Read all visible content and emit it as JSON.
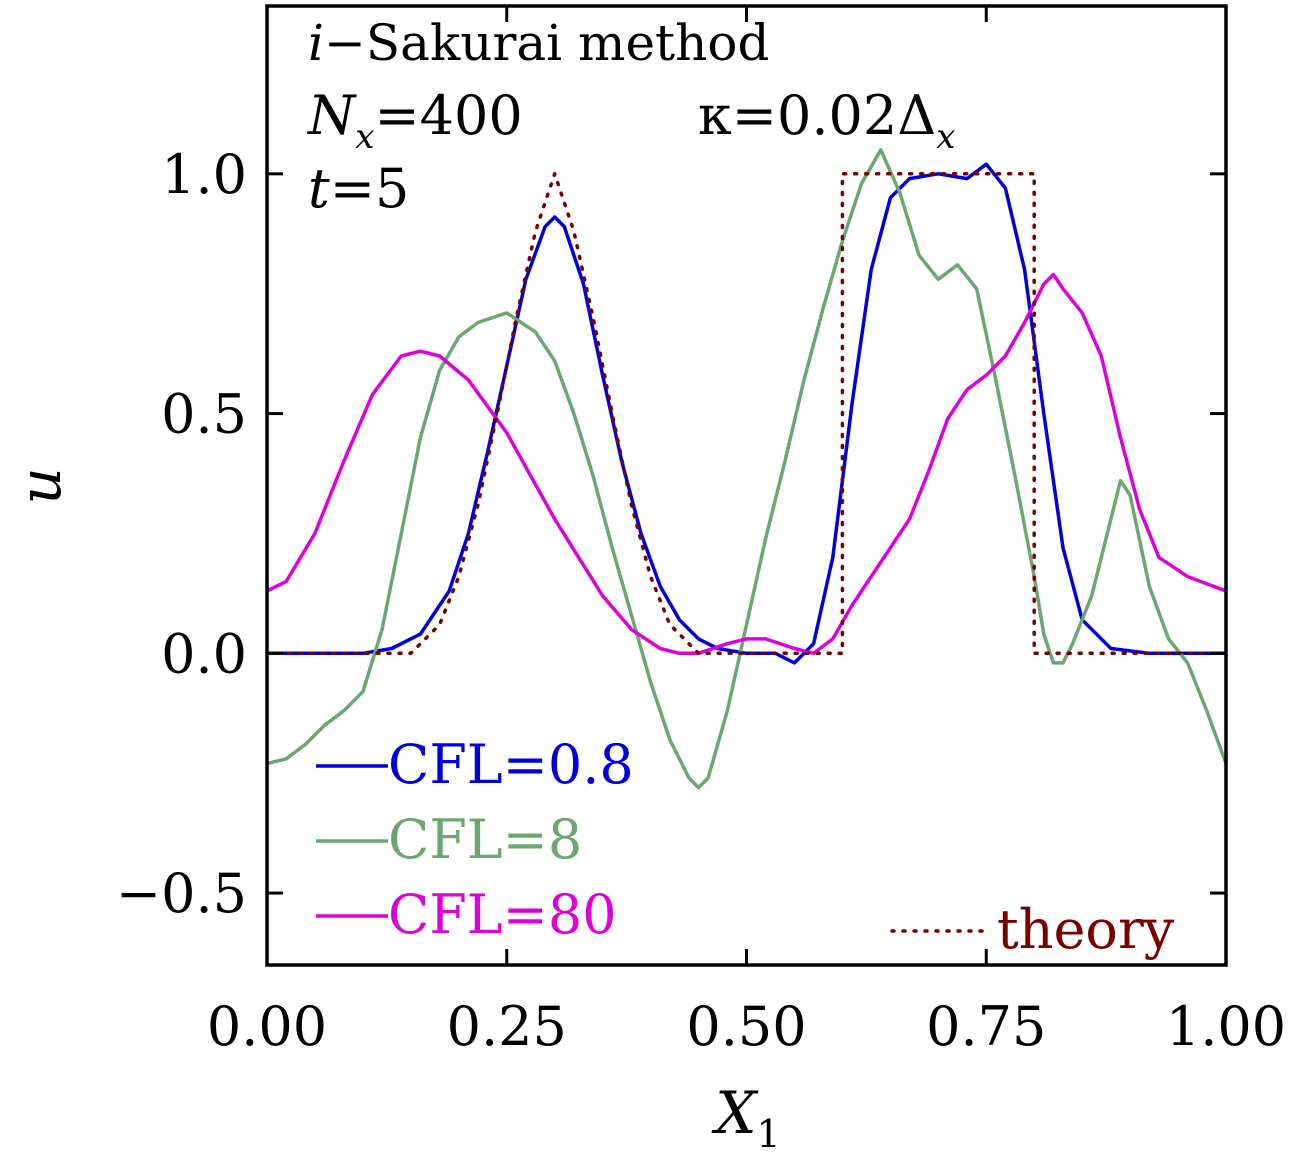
{
  "chart_data": {
    "type": "line",
    "xlabel": "X",
    "xlabel_sub": "1",
    "ylabel": "u",
    "xlim": [
      0,
      1
    ],
    "ylim": [
      -0.65,
      1.35
    ],
    "xticks": [
      0,
      0.25,
      0.5,
      0.75,
      1
    ],
    "xtick_labels": [
      "0.00",
      "0.25",
      "0.50",
      "0.75",
      "1.00"
    ],
    "yticks": [
      -0.5,
      0,
      0.5,
      1
    ],
    "ytick_labels": [
      "−0.5",
      "0.0",
      "0.5",
      "1.0"
    ],
    "grid": false,
    "annotations": {
      "method_italic": "i",
      "method_rest": "−Sakurai method",
      "nx_label": "N",
      "nx_sub": "x",
      "nx_value": "=400",
      "t_label": "t",
      "t_value": "=5",
      "kappa_text": "κ=0.02Δ",
      "kappa_sub": "x"
    },
    "series": [
      {
        "name": "CFL=0.8",
        "color": "#0000dd",
        "dash": "solid",
        "x": [
          0,
          0.1,
          0.13,
          0.16,
          0.19,
          0.21,
          0.23,
          0.25,
          0.27,
          0.29,
          0.3,
          0.31,
          0.33,
          0.35,
          0.37,
          0.39,
          0.41,
          0.43,
          0.45,
          0.47,
          0.5,
          0.53,
          0.55,
          0.57,
          0.59,
          0.61,
          0.63,
          0.65,
          0.67,
          0.7,
          0.73,
          0.75,
          0.77,
          0.79,
          0.81,
          0.83,
          0.85,
          0.88,
          0.92,
          1
        ],
        "y": [
          0,
          0,
          0.01,
          0.04,
          0.13,
          0.25,
          0.42,
          0.6,
          0.78,
          0.89,
          0.91,
          0.89,
          0.77,
          0.58,
          0.4,
          0.25,
          0.14,
          0.07,
          0.03,
          0.01,
          0,
          0,
          -0.02,
          0.02,
          0.2,
          0.52,
          0.8,
          0.95,
          0.99,
          1,
          0.99,
          1.02,
          0.97,
          0.8,
          0.5,
          0.22,
          0.07,
          0.01,
          0,
          0
        ]
      },
      {
        "name": "CFL=8",
        "color": "#6aa870",
        "dash": "solid",
        "x": [
          0,
          0.02,
          0.04,
          0.06,
          0.08,
          0.1,
          0.12,
          0.14,
          0.16,
          0.18,
          0.2,
          0.22,
          0.25,
          0.28,
          0.3,
          0.32,
          0.34,
          0.36,
          0.38,
          0.4,
          0.42,
          0.44,
          0.45,
          0.46,
          0.48,
          0.5,
          0.52,
          0.54,
          0.56,
          0.58,
          0.6,
          0.62,
          0.64,
          0.66,
          0.68,
          0.7,
          0.72,
          0.74,
          0.76,
          0.78,
          0.8,
          0.81,
          0.82,
          0.83,
          0.84,
          0.86,
          0.88,
          0.89,
          0.9,
          0.92,
          0.94,
          0.96,
          0.98,
          1
        ],
        "y": [
          -0.23,
          -0.22,
          -0.19,
          -0.15,
          -0.12,
          -0.08,
          0.05,
          0.25,
          0.45,
          0.59,
          0.66,
          0.69,
          0.71,
          0.67,
          0.61,
          0.5,
          0.37,
          0.22,
          0.08,
          -0.06,
          -0.18,
          -0.26,
          -0.28,
          -0.26,
          -0.12,
          0.06,
          0.24,
          0.4,
          0.57,
          0.72,
          0.86,
          0.98,
          1.05,
          0.96,
          0.83,
          0.78,
          0.81,
          0.76,
          0.57,
          0.37,
          0.16,
          0.04,
          -0.02,
          -0.02,
          0.02,
          0.12,
          0.28,
          0.36,
          0.33,
          0.14,
          0.03,
          -0.02,
          -0.12,
          -0.23
        ]
      },
      {
        "name": "CFL=80",
        "color": "#dd00dd",
        "dash": "solid",
        "x": [
          0,
          0.02,
          0.05,
          0.08,
          0.11,
          0.14,
          0.16,
          0.18,
          0.21,
          0.25,
          0.3,
          0.35,
          0.38,
          0.41,
          0.43,
          0.45,
          0.48,
          0.5,
          0.52,
          0.55,
          0.57,
          0.59,
          0.61,
          0.63,
          0.65,
          0.67,
          0.69,
          0.71,
          0.73,
          0.75,
          0.77,
          0.79,
          0.81,
          0.82,
          0.83,
          0.85,
          0.87,
          0.89,
          0.91,
          0.93,
          0.96,
          1
        ],
        "y": [
          0.13,
          0.15,
          0.25,
          0.4,
          0.54,
          0.62,
          0.63,
          0.62,
          0.57,
          0.46,
          0.28,
          0.12,
          0.05,
          0.01,
          0,
          0,
          0.02,
          0.03,
          0.03,
          0.01,
          0,
          0.03,
          0.1,
          0.16,
          0.22,
          0.28,
          0.38,
          0.49,
          0.55,
          0.58,
          0.62,
          0.69,
          0.77,
          0.79,
          0.76,
          0.71,
          0.62,
          0.45,
          0.3,
          0.2,
          0.16,
          0.13
        ]
      },
      {
        "name": "theory",
        "color": "#7a0000",
        "dash": "dotted",
        "x": [
          0,
          0.1,
          0.15,
          0.18,
          0.2,
          0.22,
          0.24,
          0.26,
          0.28,
          0.3,
          0.32,
          0.34,
          0.36,
          0.38,
          0.4,
          0.42,
          0.45,
          0.6,
          0.6,
          0.8,
          0.8,
          1
        ],
        "y": [
          0,
          0,
          0,
          0.06,
          0.16,
          0.31,
          0.5,
          0.7,
          0.88,
          1,
          0.88,
          0.7,
          0.5,
          0.31,
          0.16,
          0.06,
          0,
          0,
          1,
          1,
          0,
          0
        ]
      }
    ],
    "legend_left": [
      "CFL=0.8",
      "CFL=8",
      "CFL=80"
    ],
    "legend_right": [
      "theory"
    ]
  }
}
